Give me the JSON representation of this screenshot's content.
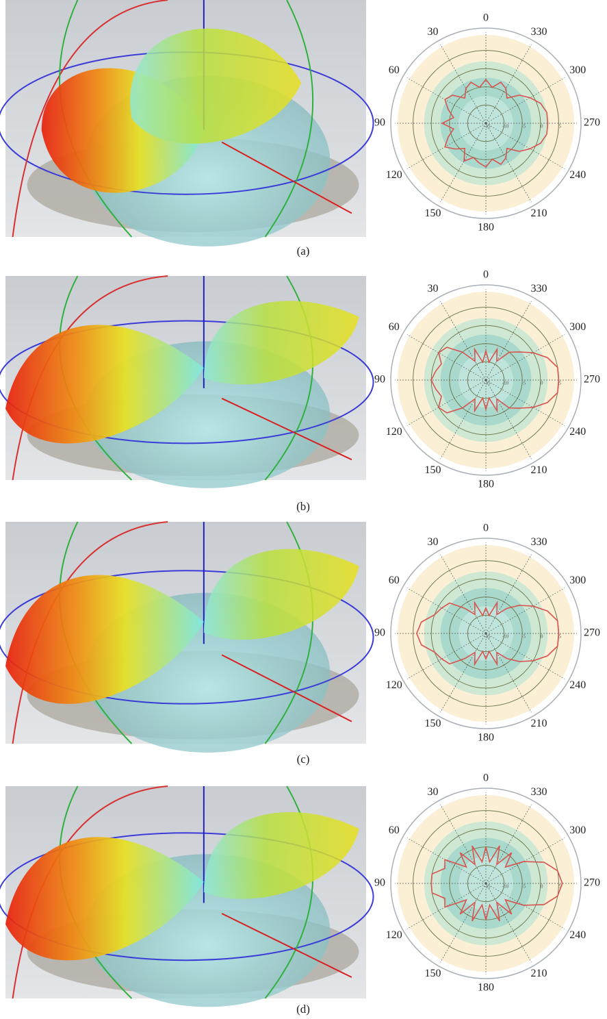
{
  "chart_data": [
    {
      "type": "polar",
      "caption": "(a)",
      "color": "#d9534f",
      "thetaticks": [
        0,
        30,
        60,
        90,
        120,
        150,
        180,
        210,
        240,
        270,
        300,
        330
      ],
      "rlim": [
        -15,
        10
      ],
      "rticks": [
        -15,
        -10,
        -5,
        0,
        5
      ],
      "theta": [
        0,
        10,
        20,
        30,
        40,
        50,
        60,
        70,
        80,
        90,
        100,
        110,
        120,
        130,
        140,
        150,
        160,
        170,
        180,
        190,
        200,
        210,
        220,
        230,
        240,
        250,
        260,
        270,
        280,
        290,
        300,
        310,
        320,
        330,
        340,
        350
      ],
      "values": [
        -3,
        -5,
        -3,
        -4,
        -6,
        -3,
        -2,
        -4,
        -6,
        -3,
        -6,
        -4,
        -2,
        -4,
        -6,
        -3,
        -5,
        -4,
        -3,
        -5,
        -3,
        -4,
        -6,
        -3,
        -1,
        1,
        2,
        2,
        2,
        1,
        -1,
        -3,
        -6,
        -4,
        -3,
        -5
      ]
    },
    {
      "type": "polar",
      "caption": "(b)",
      "color": "#d9534f",
      "thetaticks": [
        0,
        30,
        60,
        90,
        120,
        150,
        180,
        210,
        240,
        270,
        300,
        330
      ],
      "rlim": [
        -15,
        10
      ],
      "rticks": [
        -15,
        -10,
        -5,
        0,
        5
      ],
      "theta": [
        0,
        10,
        20,
        30,
        40,
        50,
        60,
        70,
        80,
        90,
        100,
        110,
        120,
        130,
        140,
        150,
        160,
        170,
        180,
        190,
        200,
        210,
        220,
        230,
        240,
        250,
        260,
        270,
        280,
        290,
        300,
        310,
        320,
        330,
        340,
        350
      ],
      "values": [
        -7,
        -10,
        -6,
        -9,
        -5,
        -1,
        0,
        -2,
        -1,
        0,
        -1,
        -2,
        0,
        -1,
        -5,
        -9,
        -6,
        -10,
        -7,
        -10,
        -6,
        -9,
        -5,
        -3,
        0,
        3,
        5,
        5,
        5,
        3,
        0,
        -3,
        -5,
        -9,
        -6,
        -10
      ]
    },
    {
      "type": "polar",
      "caption": "(c)",
      "color": "#d9534f",
      "thetaticks": [
        0,
        30,
        60,
        90,
        120,
        150,
        180,
        210,
        240,
        270,
        300,
        330
      ],
      "rlim": [
        -15,
        10
      ],
      "rticks": [
        -15,
        -10,
        -5,
        0,
        5
      ],
      "theta": [
        0,
        10,
        20,
        30,
        40,
        50,
        60,
        70,
        80,
        90,
        100,
        110,
        120,
        130,
        140,
        150,
        160,
        170,
        180,
        190,
        200,
        210,
        220,
        230,
        240,
        250,
        260,
        270,
        280,
        290,
        300,
        310,
        320,
        330,
        340,
        350
      ],
      "values": [
        -8,
        -10,
        -6,
        -9,
        -6,
        -2,
        -1,
        0,
        3,
        4,
        3,
        0,
        -1,
        -2,
        -6,
        -9,
        -6,
        -10,
        -8,
        -10,
        -6,
        -9,
        -6,
        -3,
        0,
        3,
        5,
        5,
        5,
        3,
        0,
        -3,
        -6,
        -9,
        -6,
        -10
      ]
    },
    {
      "type": "polar",
      "caption": "(d)",
      "color": "#d9534f",
      "thetaticks": [
        0,
        30,
        60,
        90,
        120,
        150,
        180,
        210,
        240,
        270,
        300,
        330
      ],
      "rlim": [
        -15,
        10
      ],
      "rticks": [
        -15,
        -10,
        -5,
        0,
        5
      ],
      "theta": [
        0,
        10,
        20,
        30,
        40,
        50,
        60,
        70,
        80,
        90,
        100,
        110,
        120,
        130,
        140,
        150,
        160,
        170,
        180,
        190,
        200,
        210,
        220,
        230,
        240,
        250,
        260,
        270,
        280,
        290,
        300,
        310,
        320,
        330,
        340,
        350
      ],
      "values": [
        -5,
        -9,
        -4,
        -9,
        -4,
        -8,
        -2,
        -3,
        0,
        0,
        0,
        -3,
        -2,
        -8,
        -4,
        -9,
        -4,
        -9,
        -5,
        -9,
        -4,
        -9,
        -4,
        -8,
        -3,
        2,
        5,
        6,
        5,
        2,
        -3,
        -8,
        -4,
        -9,
        -4,
        -9
      ]
    }
  ]
}
